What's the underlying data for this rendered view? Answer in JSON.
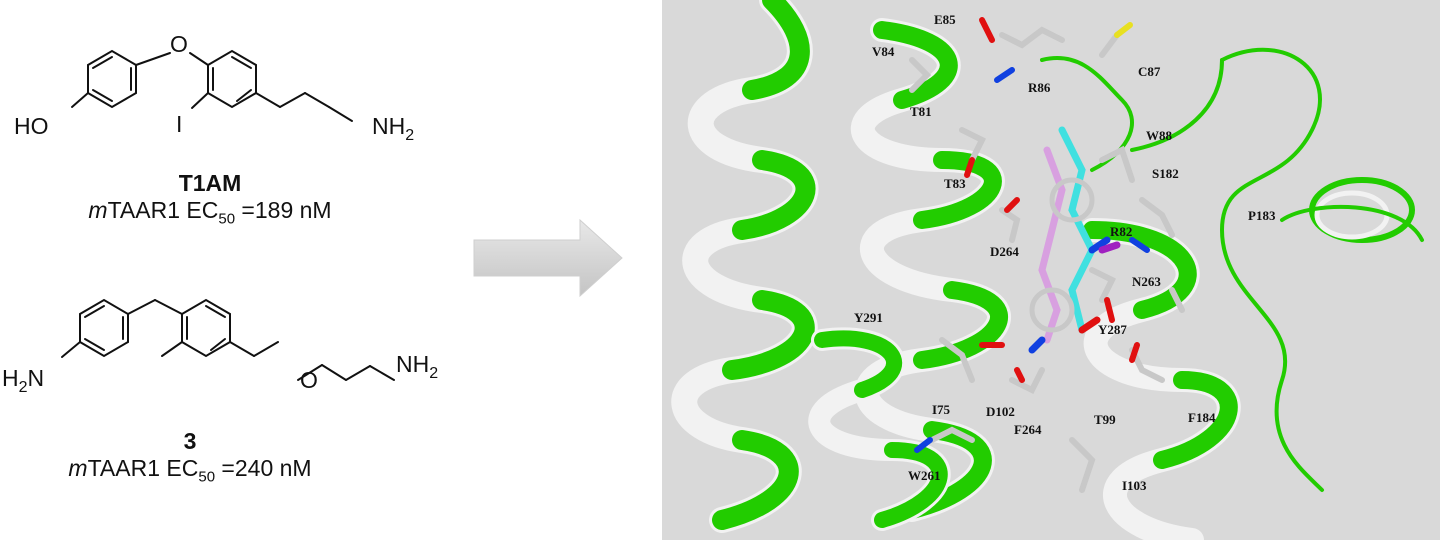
{
  "compound1": {
    "name": "T1AM",
    "ec50_prefix": "m",
    "ec50_label": "TAAR1 EC",
    "ec50_sub": "50",
    "ec50_value": " =189 nM",
    "atoms": {
      "ho": "HO",
      "o": "O",
      "i": "I",
      "nh": "NH",
      "sub2": "2"
    }
  },
  "compound2": {
    "name": "3",
    "ec50_prefix": "m",
    "ec50_label": "TAAR1 EC",
    "ec50_sub": "50",
    "ec50_value": " =240 nM",
    "atoms": {
      "h2n_h": "H",
      "h2n_2": "2",
      "h2n_n": "N",
      "o": "O",
      "nh": "NH",
      "sub2": "2"
    }
  },
  "residues": [
    "E85",
    "V84",
    "R86",
    "C87",
    "T81",
    "W88",
    "S182",
    "T83",
    "P183",
    "R82",
    "D264",
    "N263",
    "Y291",
    "Y287",
    "I75",
    "D102",
    "F184",
    "T99",
    "F264",
    "W261",
    "I103"
  ],
  "colors": {
    "helix": "#22cc00",
    "helix_back": "#f2f2f2",
    "background": "#d9d9d9",
    "ligand_cyan": "#40e0e0",
    "ligand_pink": "#d8a0e0",
    "oxygen": "#e01010",
    "nitrogen": "#1040e0"
  }
}
